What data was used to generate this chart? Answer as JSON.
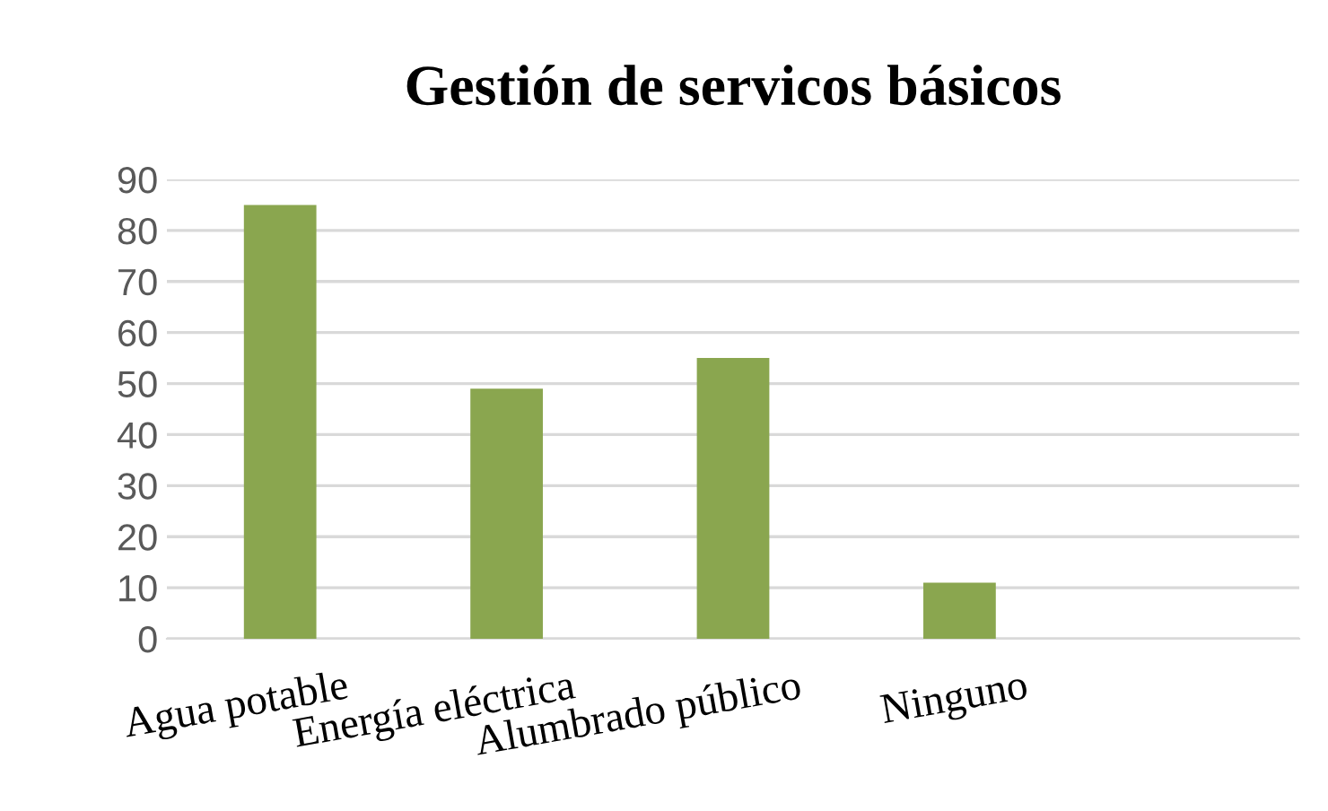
{
  "chart_data": {
    "type": "bar",
    "title": "Gestión de servicos básicos",
    "categories": [
      "Agua potable",
      "Energía eléctrica",
      "Alumbrado público",
      "Ninguno",
      null
    ],
    "values": [
      85,
      49,
      55,
      11,
      null
    ],
    "color": "#8aa64f",
    "ylim": [
      0,
      90
    ],
    "yticks": [
      0,
      10,
      20,
      30,
      40,
      50,
      60,
      70,
      80,
      90
    ],
    "grid": "y"
  }
}
